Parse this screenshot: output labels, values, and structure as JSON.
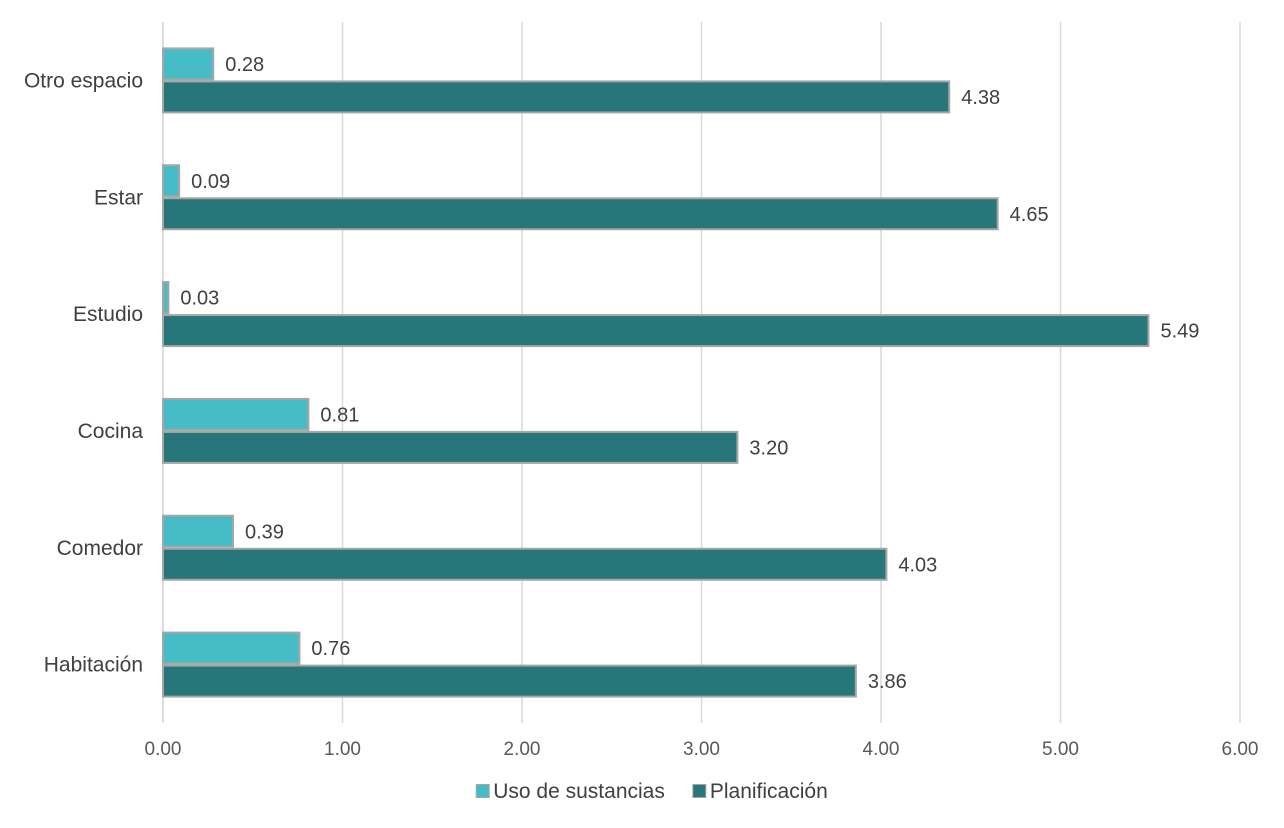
{
  "chart_data": {
    "type": "bar",
    "orientation": "horizontal",
    "categories": [
      "Otro espacio",
      "Estar",
      "Estudio",
      "Cocina",
      "Comedor",
      "Habitación"
    ],
    "series": [
      {
        "name": "Uso de sustancias",
        "color": "#46bdc6",
        "values": [
          0.28,
          0.09,
          0.03,
          0.81,
          0.39,
          0.76
        ],
        "labels": [
          "0.28",
          "0.09",
          "0.03",
          "0.81",
          "0.39",
          "0.76"
        ]
      },
      {
        "name": "Planificación",
        "color": "#27767a",
        "values": [
          4.38,
          4.65,
          5.49,
          3.2,
          4.03,
          3.86
        ],
        "labels": [
          "4.38",
          "4.65",
          "5.49",
          "3.20",
          "4.03",
          "3.86"
        ]
      }
    ],
    "xlim": [
      0,
      6
    ],
    "ticks": [
      "0.00",
      "1.00",
      "2.00",
      "3.00",
      "4.00",
      "5.00",
      "6.00"
    ],
    "grid": true,
    "legend_position": "bottom",
    "title": "",
    "xlabel": "",
    "ylabel": ""
  }
}
